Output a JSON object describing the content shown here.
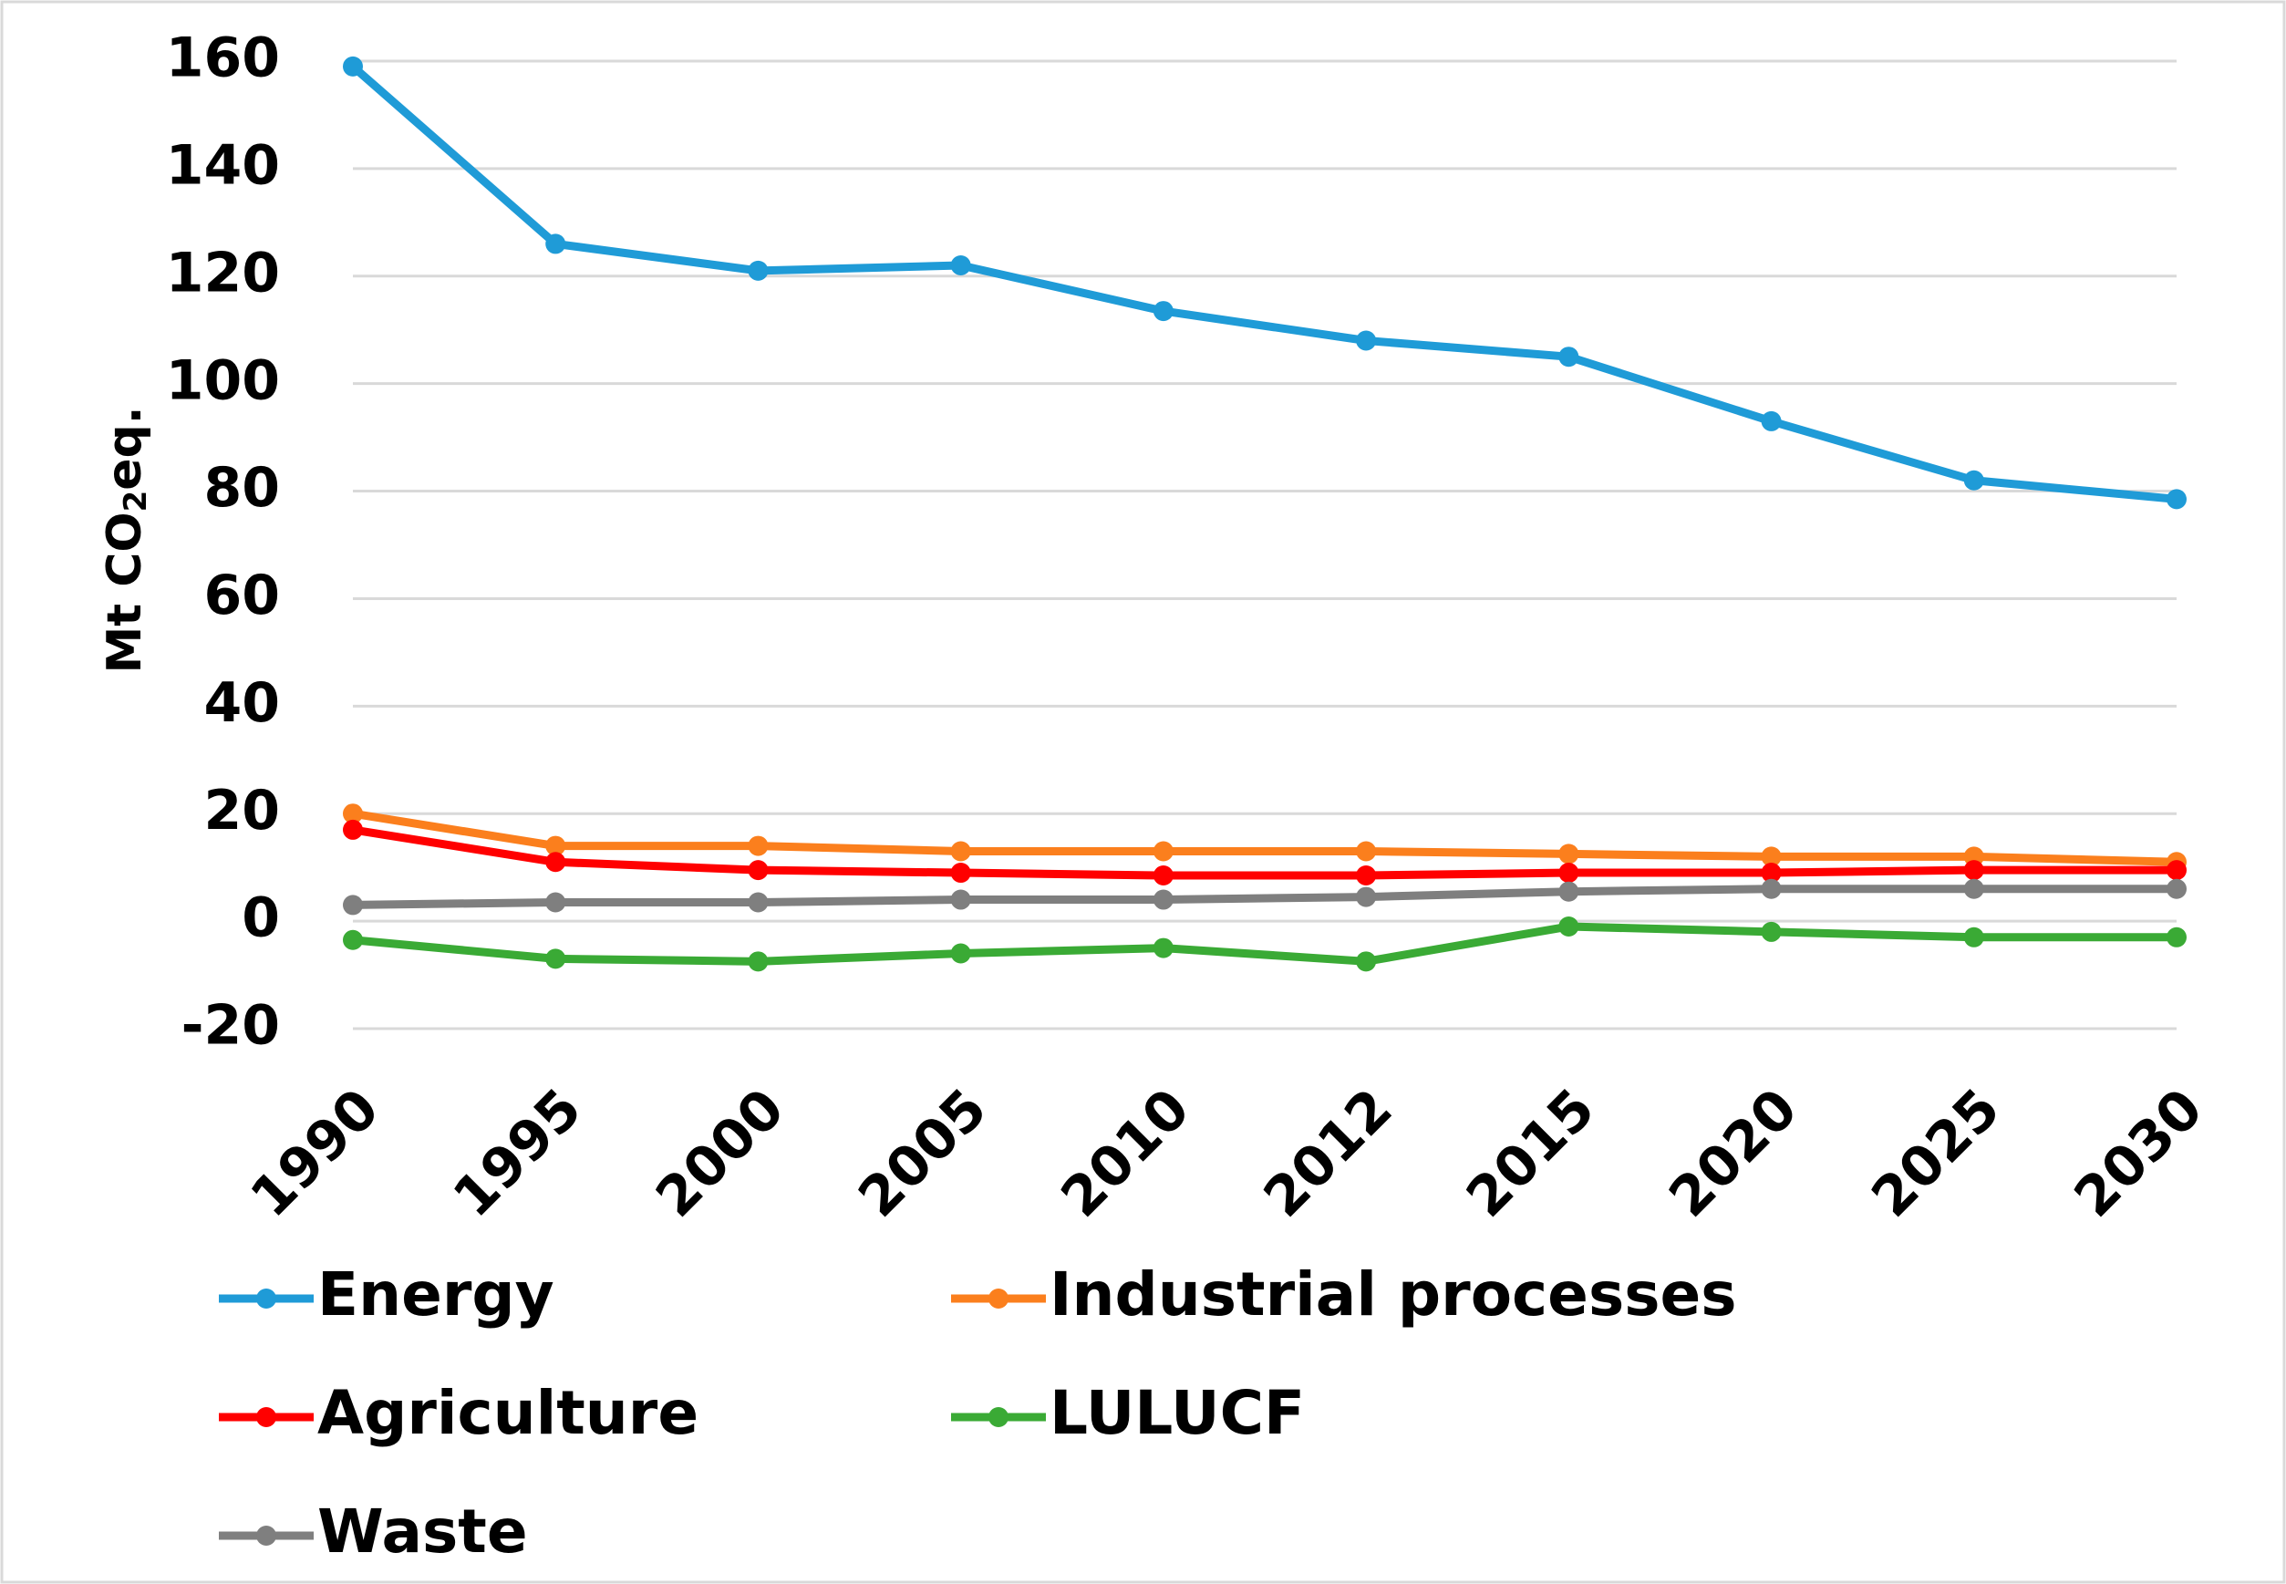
{
  "chart_data": {
    "type": "line",
    "ylabel": [
      "Mt CO",
      "2",
      "eq."
    ],
    "categories": [
      "1990",
      "1995",
      "2000",
      "2005",
      "2010",
      "2012",
      "2015",
      "2020",
      "2025",
      "2030"
    ],
    "series": [
      {
        "name": "Energy",
        "color": "#1f9bd7",
        "values": [
          159,
          126,
          121,
          122,
          113.5,
          108,
          105,
          93,
          82,
          78.5
        ]
      },
      {
        "name": "Industrial processes",
        "color": "#fb7f1d",
        "values": [
          20,
          14,
          14,
          13,
          13,
          13,
          12.5,
          12,
          12,
          11
        ]
      },
      {
        "name": "Agriculture",
        "color": "#ff0000",
        "values": [
          17,
          11,
          9.5,
          9,
          8.5,
          8.5,
          9,
          9,
          9.5,
          9.5
        ]
      },
      {
        "name": "LULUCF",
        "color": "#3aaa35",
        "values": [
          -3.5,
          -7,
          -7.5,
          -6,
          -5,
          -7.5,
          -1,
          -2,
          -3,
          -3
        ]
      },
      {
        "name": "Waste",
        "color": "#7f7f7f",
        "values": [
          3,
          3.5,
          3.5,
          4,
          4,
          4.5,
          5.5,
          6,
          6,
          6
        ]
      }
    ],
    "ylim": [
      -20,
      160
    ],
    "yticks": [
      -20,
      0,
      20,
      40,
      60,
      80,
      100,
      120,
      140,
      160
    ],
    "grid": true,
    "legend": "bottom"
  }
}
